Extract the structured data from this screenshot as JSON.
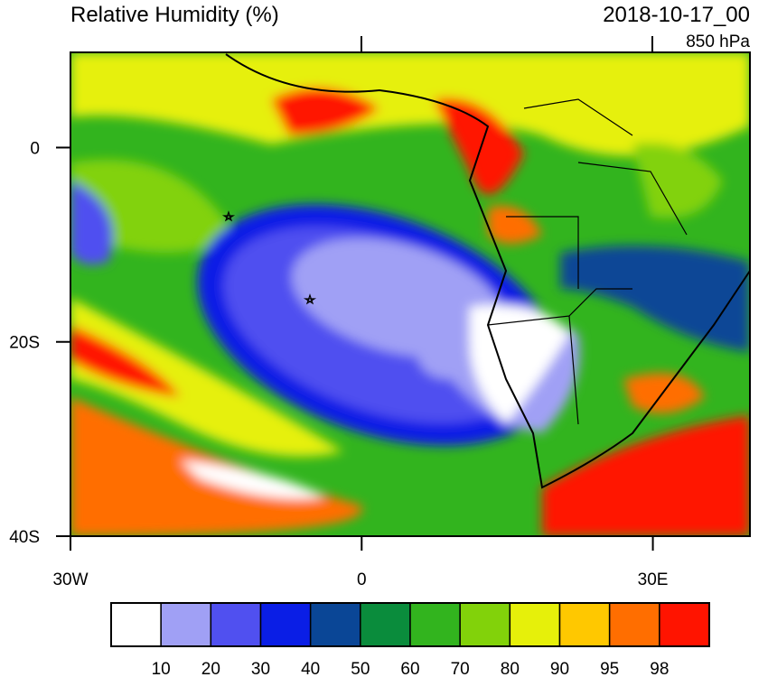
{
  "header": {
    "title": "Relative Humidity (%)",
    "time": "2018-10-17_00",
    "level": "850 hPa"
  },
  "map": {
    "xlim": [
      -30,
      40
    ],
    "ylim": [
      -40,
      9.8
    ],
    "xticks": [
      {
        "value": -30,
        "label": "30W"
      },
      0,
      {
        "value": 30,
        "label": "30E"
      }
    ],
    "yticks": [
      0,
      {
        "value": -20,
        "label": "20S"
      },
      {
        "value": -40,
        "label": "40S"
      }
    ]
  },
  "colorbar": {
    "levels": [
      10,
      20,
      30,
      40,
      50,
      60,
      70,
      80,
      90,
      95,
      98
    ],
    "colors": [
      "#ffffff",
      "#a0a0f5",
      "#5050f0",
      "#0a1ee6",
      "#0a4696",
      "#0a8c3c",
      "#32b41e",
      "#82d20a",
      "#e6f00a",
      "#ffc800",
      "#ff6e00",
      "#ff1400"
    ]
  }
}
